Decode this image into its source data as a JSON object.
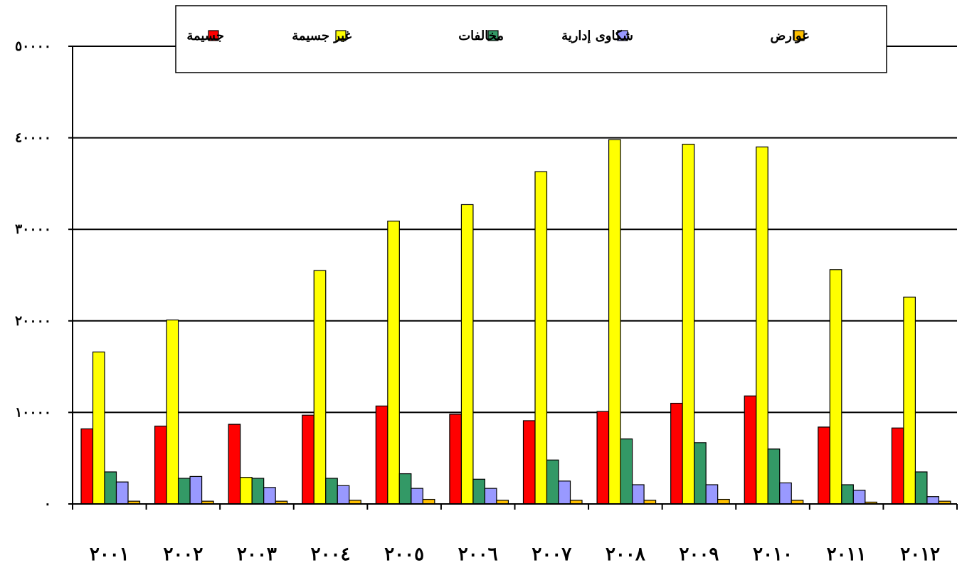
{
  "chart_data": {
    "type": "bar",
    "categories": [
      "٢٠٠١",
      "٢٠٠٢",
      "٢٠٠٣",
      "٢٠٠٤",
      "٢٠٠٥",
      "٢٠٠٦",
      "٢٠٠٧",
      "٢٠٠٨",
      "٢٠٠٩",
      "٢٠١٠",
      "٢٠١١",
      "٢٠١٢"
    ],
    "y_ticks": [
      "٠",
      "١٠٠٠٠",
      "٢٠٠٠٠",
      "٣٠٠٠٠",
      "٤٠٠٠٠",
      "٥٠٠٠٠"
    ],
    "ylim": [
      0,
      50000
    ],
    "grid": true,
    "legend_position": "top",
    "series": [
      {
        "name": "جسيمة",
        "color": "#ff0000",
        "values": [
          8200,
          8500,
          8700,
          9700,
          10700,
          9800,
          9100,
          10100,
          11000,
          11800,
          8400,
          8300
        ]
      },
      {
        "name": "غير جسيمة",
        "color": "#ffff00",
        "values": [
          16600,
          20100,
          2900,
          25500,
          30900,
          32700,
          36300,
          39800,
          39300,
          39000,
          25600,
          22600
        ]
      },
      {
        "name": "مخالفات",
        "color": "#339966",
        "values": [
          3500,
          2800,
          2800,
          2800,
          3300,
          2700,
          4800,
          7100,
          6700,
          6000,
          2100,
          3500
        ]
      },
      {
        "name": "شكاوى إدارية",
        "color": "#9999ff",
        "values": [
          2400,
          3000,
          1800,
          2000,
          1700,
          1700,
          2500,
          2100,
          2100,
          2300,
          1500,
          800
        ]
      },
      {
        "name": "عوارض",
        "color": "#ffc000",
        "values": [
          300,
          300,
          300,
          400,
          500,
          400,
          400,
          400,
          500,
          400,
          200,
          300
        ]
      }
    ]
  }
}
